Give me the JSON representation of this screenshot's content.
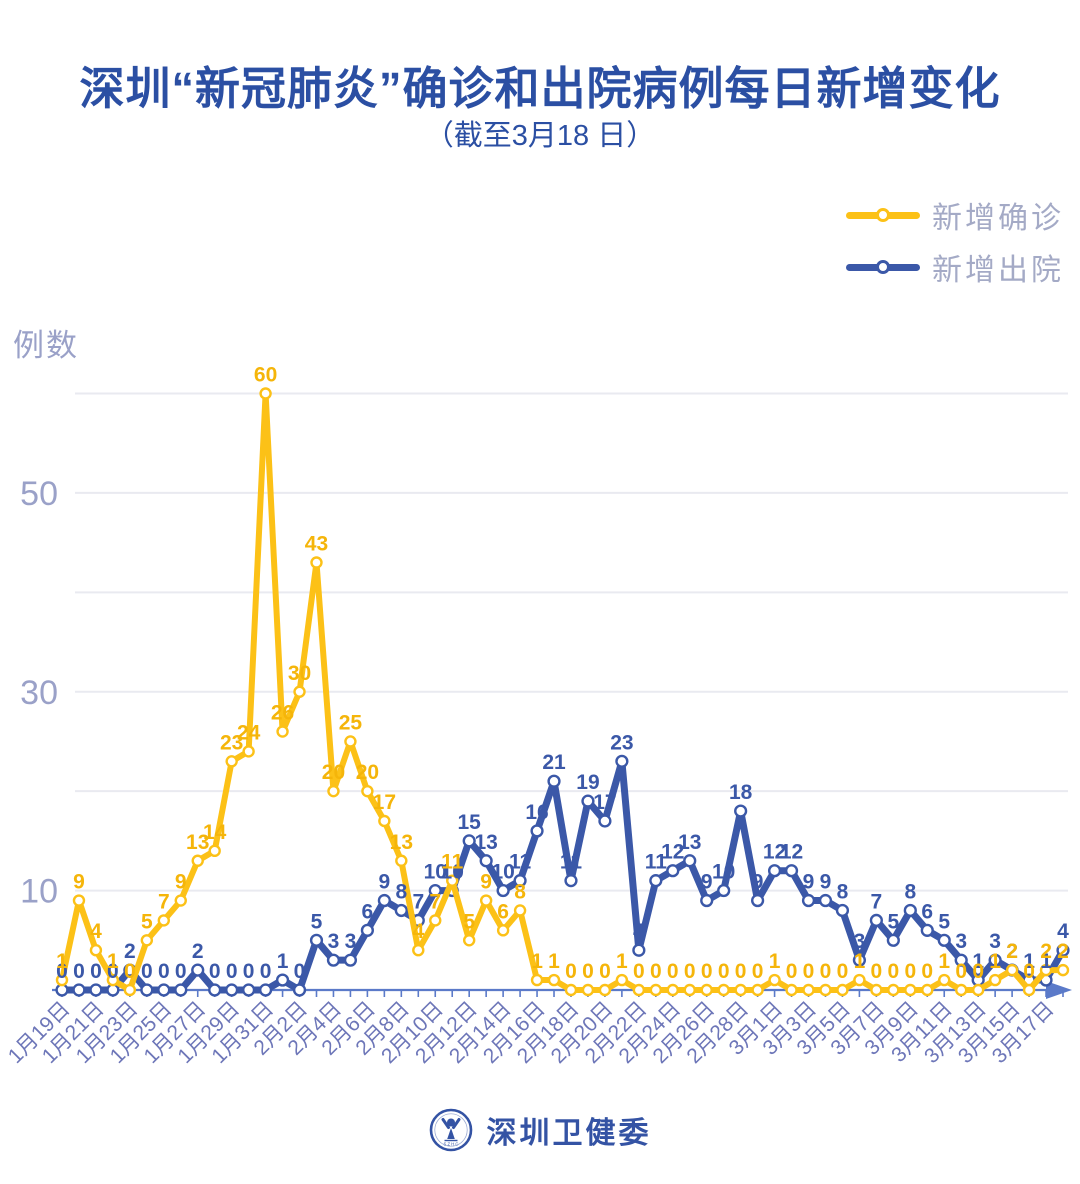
{
  "title": "深圳“新冠肺炎”确诊和出院病例每日新增变化",
  "subtitle": "（截至3月18 日）",
  "y_axis_label": "例数",
  "legend": [
    {
      "label": "新增确诊",
      "color": "#fcc117"
    },
    {
      "label": "新增出院",
      "color": "#3b58a8"
    }
  ],
  "footer": {
    "logo_text": "深圳卫健委"
  },
  "colors": {
    "title": "#2b4fa3",
    "confirmed": "#fcc117",
    "confirmed_label": "#f5b50a",
    "discharged": "#3b58a8",
    "grid": "#e9eaf0",
    "axis": "#5b7ac9",
    "tick_label": "#6d76b8",
    "y_tick_label": "#9aa1c8",
    "legend_text": "#a4aac6"
  },
  "chart_data": {
    "type": "line",
    "title": "深圳“新冠肺炎”确诊和出院病例每日新增变化",
    "subtitle": "（截至3月18 日）",
    "ylabel": "例数",
    "ylim": [
      0,
      60
    ],
    "gridlines": [
      10,
      20,
      30,
      40,
      50,
      60
    ],
    "y_tick_labels": [
      50,
      30,
      10
    ],
    "legend_position": "top-right",
    "point_labels": true,
    "categories": [
      "1月19日",
      "1月20日",
      "1月21日",
      "1月22日",
      "1月23日",
      "1月24日",
      "1月25日",
      "1月26日",
      "1月27日",
      "1月28日",
      "1月29日",
      "1月30日",
      "1月31日",
      "2月1日",
      "2月2日",
      "2月3日",
      "2月4日",
      "2月5日",
      "2月6日",
      "2月7日",
      "2月8日",
      "2月9日",
      "2月10日",
      "2月11日",
      "2月12日",
      "2月13日",
      "2月14日",
      "2月15日",
      "2月16日",
      "2月17日",
      "2月18日",
      "2月19日",
      "2月20日",
      "2月21日",
      "2月22日",
      "2月23日",
      "2月24日",
      "2月25日",
      "2月26日",
      "2月27日",
      "2月28日",
      "2月29日",
      "3月1日",
      "3月2日",
      "3月3日",
      "3月4日",
      "3月5日",
      "3月6日",
      "3月7日",
      "3月8日",
      "3月9日",
      "3月10日",
      "3月11日",
      "3月12日",
      "3月13日",
      "3月14日",
      "3月15日",
      "3月16日",
      "3月17日",
      "3月18日"
    ],
    "x_tick_labels": [
      "1月19日",
      "1月21日",
      "1月23日",
      "1月25日",
      "1月27日",
      "1月29日",
      "1月31日",
      "2月2日",
      "2月4日",
      "2月6日",
      "2月8日",
      "2月10日",
      "2月12日",
      "2月14日",
      "2月16日",
      "2月18日",
      "2月20日",
      "2月22日",
      "2月24日",
      "2月26日",
      "2月28日",
      "3月1日",
      "3月3日",
      "3月5日",
      "3月7日",
      "3月9日",
      "3月11日",
      "3月13日",
      "3月15日",
      "3月17日"
    ],
    "series": [
      {
        "name": "新增确诊",
        "color": "#fcc117",
        "values": [
          1,
          9,
          4,
          1,
          0,
          5,
          7,
          9,
          13,
          14,
          23,
          24,
          60,
          26,
          30,
          43,
          20,
          25,
          20,
          17,
          13,
          4,
          7,
          11,
          5,
          9,
          6,
          8,
          1,
          1,
          0,
          0,
          0,
          1,
          0,
          0,
          0,
          0,
          0,
          0,
          0,
          0,
          1,
          0,
          0,
          0,
          0,
          1,
          0,
          0,
          0,
          0,
          1,
          0,
          0,
          1,
          2,
          0,
          2,
          2
        ]
      },
      {
        "name": "新增出院",
        "color": "#3b58a8",
        "values": [
          0,
          0,
          0,
          0,
          2,
          0,
          0,
          0,
          2,
          0,
          0,
          0,
          0,
          1,
          0,
          5,
          3,
          3,
          6,
          9,
          8,
          7,
          10,
          10,
          15,
          13,
          10,
          11,
          16,
          21,
          11,
          19,
          17,
          23,
          4,
          11,
          12,
          13,
          9,
          10,
          18,
          9,
          12,
          12,
          9,
          9,
          8,
          3,
          7,
          5,
          8,
          6,
          5,
          3,
          1,
          3,
          2,
          1,
          1,
          4
        ]
      }
    ]
  }
}
